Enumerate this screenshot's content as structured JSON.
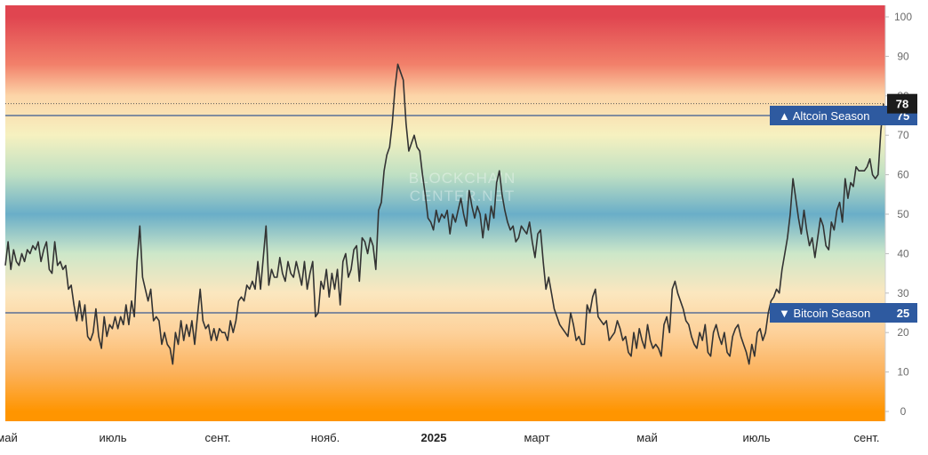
{
  "chart_data": {
    "type": "line",
    "y_range": [
      0,
      100
    ],
    "y_ticks": [
      0,
      10,
      20,
      30,
      40,
      50,
      60,
      70,
      80,
      90,
      100
    ],
    "x_labels": [
      "май",
      "июль",
      "сент.",
      "нояб.",
      "2025",
      "март",
      "май",
      "июль",
      "сент."
    ],
    "x_label_bold": "2025",
    "watermark": [
      "BLOCKCHAIN",
      "CENTER.NET"
    ],
    "current_value": 78,
    "thresholds": [
      {
        "name": "Altcoin Season",
        "value": 75,
        "marker": "▲"
      },
      {
        "name": "Bitcoin Season",
        "value": 25,
        "marker": "▼"
      }
    ],
    "background_gradient": [
      {
        "value": 100,
        "color": "#e04550"
      },
      {
        "value": 88,
        "color": "#f2806a"
      },
      {
        "value": 80,
        "color": "#fcd5a8"
      },
      {
        "value": 70,
        "color": "#f6f1c0"
      },
      {
        "value": 60,
        "color": "#bfe0c3"
      },
      {
        "value": 50,
        "color": "#6aaec8"
      },
      {
        "value": 40,
        "color": "#cde7c9"
      },
      {
        "value": 30,
        "color": "#fbe7bf"
      },
      {
        "value": 20,
        "color": "#fdd19a"
      },
      {
        "value": 10,
        "color": "#fcb25c"
      },
      {
        "value": 0,
        "color": "#ff9500"
      }
    ],
    "line_color": "#333333",
    "threshold_color": "#3a5a92",
    "tag_color": "#2e5aa0",
    "current_tag_color": "#1c1c1c",
    "series": [
      {
        "values": [
          37,
          43,
          36,
          41,
          38,
          37,
          40,
          38,
          41,
          40,
          42,
          41,
          43,
          38,
          41,
          43,
          36,
          35,
          43,
          37,
          38,
          36,
          37,
          31,
          32,
          27,
          23,
          28,
          23,
          27,
          19,
          18,
          20,
          26,
          19,
          16,
          24,
          19,
          22,
          21,
          24,
          21,
          24,
          22,
          27,
          22,
          28,
          24,
          38,
          47,
          34,
          31,
          28,
          31,
          23,
          24,
          23,
          17,
          20,
          17,
          16,
          12,
          20,
          17,
          23,
          18,
          22,
          19,
          23,
          17,
          24,
          31,
          23,
          21,
          22,
          18,
          21,
          18,
          21,
          20,
          20,
          18,
          23,
          20,
          23,
          28,
          29,
          28,
          32,
          31,
          33,
          31,
          38,
          31,
          39,
          47,
          32,
          36,
          34,
          34,
          39,
          35,
          33,
          38,
          35,
          34,
          38,
          35,
          32,
          38,
          31,
          35,
          38,
          24,
          25,
          33,
          31,
          36,
          29,
          35,
          31,
          36,
          27,
          38,
          40,
          34,
          36,
          41,
          42,
          33,
          44,
          43,
          40,
          44,
          42,
          36,
          51,
          53,
          61,
          65,
          67,
          73,
          82,
          88,
          86,
          84,
          73,
          66,
          68,
          70,
          67,
          66,
          60,
          55,
          49,
          48,
          46,
          51,
          48,
          50,
          49,
          51,
          45,
          50,
          48,
          51,
          54,
          50,
          47,
          56,
          52,
          49,
          52,
          50,
          44,
          50,
          46,
          52,
          49,
          58,
          61,
          55,
          51,
          48,
          46,
          47,
          43,
          44,
          47,
          46,
          45,
          48,
          43,
          39,
          45,
          46,
          38,
          31,
          34,
          30,
          26,
          24,
          22,
          21,
          20,
          19,
          25,
          22,
          18,
          19,
          17,
          17,
          27,
          25,
          29,
          31,
          24,
          23,
          22,
          23,
          18,
          19,
          20,
          23,
          21,
          18,
          19,
          15,
          14,
          20,
          16,
          21,
          18,
          16,
          22,
          18,
          16,
          17,
          16,
          14,
          22,
          24,
          20,
          31,
          33,
          30,
          28,
          26,
          23,
          22,
          19,
          17,
          16,
          20,
          18,
          22,
          15,
          14,
          20,
          22,
          19,
          17,
          20,
          15,
          14,
          19,
          21,
          22,
          19,
          17,
          15,
          12,
          17,
          14,
          20,
          21,
          18,
          20,
          25,
          28,
          29,
          31,
          30,
          36,
          40,
          44,
          50,
          59,
          54,
          49,
          45,
          51,
          46,
          42,
          44,
          39,
          44,
          49,
          47,
          42,
          41,
          48,
          46,
          51,
          53,
          48,
          59,
          54,
          58,
          57,
          62,
          61,
          61,
          61,
          62,
          64,
          60,
          59,
          60,
          71,
          78
        ]
      }
    ]
  }
}
